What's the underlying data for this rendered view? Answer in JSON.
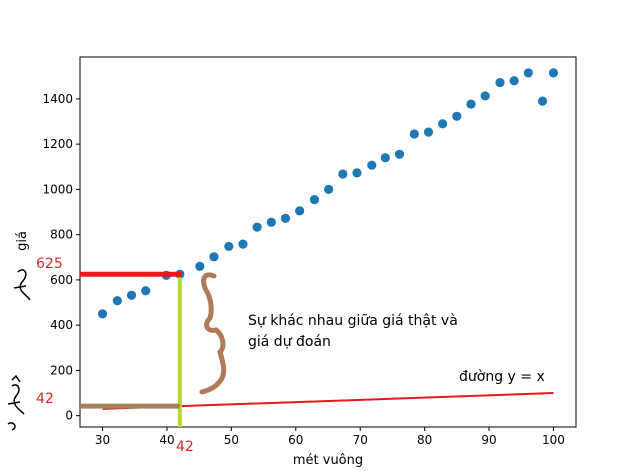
{
  "chart_data": {
    "type": "scatter",
    "xlabel": "mét vuông",
    "ylabel": "giá",
    "xlim": [
      26.5,
      103.5
    ],
    "ylim": [
      -50,
      1585
    ],
    "x_ticks": [
      30,
      40,
      50,
      60,
      70,
      80,
      90,
      100
    ],
    "y_ticks": [
      0,
      200,
      400,
      600,
      800,
      1000,
      1200,
      1400
    ],
    "x_tick_labels": [
      "30",
      "40",
      "50",
      "60",
      "70",
      "80",
      "90",
      "100"
    ],
    "y_tick_labels": [
      "0",
      "200",
      "400",
      "600",
      "800",
      "1000",
      "1200",
      "1400"
    ],
    "point_color": "#1f77b4",
    "x": [
      30.0,
      32.3,
      34.5,
      36.7,
      39.9,
      42.0,
      45.1,
      47.3,
      49.6,
      51.8,
      54.0,
      56.2,
      58.4,
      60.6,
      62.9,
      65.1,
      67.3,
      69.5,
      71.8,
      73.9,
      76.1,
      78.4,
      80.6,
      82.8,
      85.0,
      87.2,
      89.4,
      91.7,
      93.9,
      96.1,
      98.3,
      100.0
    ],
    "y": [
      450,
      508,
      532,
      552,
      620,
      625,
      660,
      702,
      748,
      758,
      833,
      855,
      872,
      905,
      955,
      1000,
      1068,
      1073,
      1107,
      1140,
      1155,
      1245,
      1253,
      1290,
      1323,
      1377,
      1413,
      1472,
      1480,
      1515,
      1390,
      1515
    ],
    "line": {
      "name": "đường y = x",
      "x": [
        30,
        100
      ],
      "y": [
        30,
        100
      ],
      "color": "#e8191c"
    },
    "annotations": {
      "actual_value": "625",
      "predicted_value": "42",
      "x_marker": "42",
      "difference_text_line1": "Sự khác nhau giữa giá thật và",
      "difference_text_line2": "giá dự đoán"
    }
  }
}
